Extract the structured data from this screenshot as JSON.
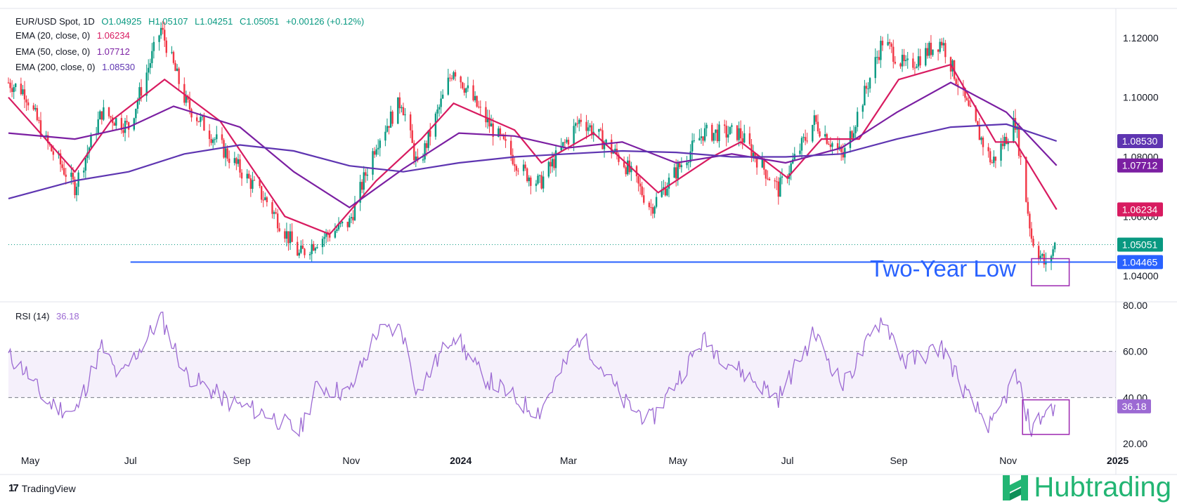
{
  "header": {
    "main": {
      "label": "EUR/USD Spot, 1D",
      "o": "O1.04925",
      "h": "H1.05107",
      "l": "L1.04251",
      "c": "C1.05051",
      "chg": "+0.00126 (+0.12%)"
    },
    "ema20": {
      "label": "EMA (20, close, 0)",
      "value": "1.06234"
    },
    "ema50": {
      "label": "EMA (50, close, 0)",
      "value": "1.07712"
    },
    "ema200": {
      "label": "EMA (200, close, 0)",
      "value": "1.08530"
    },
    "rsi": {
      "label": "RSI (14)",
      "value": "36.18"
    }
  },
  "annotation": {
    "text": "Two-Year Low"
  },
  "footer": {
    "tradingview": "TradingView",
    "brand": "Hubtrading"
  },
  "colors": {
    "up": "#089981",
    "down": "#f23645",
    "ema20": "#d81b60",
    "ema50": "#7b1fa2",
    "ema200": "#5e35b1",
    "rsi": "#9c6ad3",
    "support": "#2962ff",
    "box": "#9c27b0",
    "brand": "#22b573"
  },
  "chart_data": [
    {
      "type": "candlestick",
      "title": "EUR/USD Spot, 1D",
      "ylim": [
        1.032,
        1.128
      ],
      "y_ticks": [
        "1.12000",
        "1.10000",
        "1.08000",
        "1.06000",
        "1.04000"
      ],
      "x_ticks": [
        "May",
        "Jul",
        "Sep",
        "Nov",
        "2024",
        "Mar",
        "May",
        "Jul",
        "Sep",
        "Nov",
        "2025"
      ],
      "x_range": [
        "2023-04-24",
        "2024-12-31"
      ],
      "price_labels": [
        {
          "name": "EMA 200",
          "value": "1.08530"
        },
        {
          "name": "EMA 50",
          "value": "1.07712"
        },
        {
          "name": "EMA 20",
          "value": "1.06234"
        },
        {
          "name": "Close",
          "value": "1.05051"
        },
        {
          "name": "Support",
          "value": "1.04465"
        }
      ],
      "close_path": [
        [
          "2023-04-24",
          1.105
        ],
        [
          "2023-05-03",
          1.102
        ],
        [
          "2023-05-15",
          1.085
        ],
        [
          "2023-05-31",
          1.07
        ],
        [
          "2023-06-15",
          1.095
        ],
        [
          "2023-06-30",
          1.09
        ],
        [
          "2023-07-18",
          1.123
        ],
        [
          "2023-08-01",
          1.098
        ],
        [
          "2023-08-25",
          1.08
        ],
        [
          "2023-09-15",
          1.065
        ],
        [
          "2023-10-03",
          1.047
        ],
        [
          "2023-10-13",
          1.052
        ],
        [
          "2023-10-31",
          1.058
        ],
        [
          "2023-11-15",
          1.085
        ],
        [
          "2023-11-29",
          1.099
        ],
        [
          "2023-12-08",
          1.076
        ],
        [
          "2023-12-28",
          1.11
        ],
        [
          "2024-01-12",
          1.095
        ],
        [
          "2024-02-05",
          1.075
        ],
        [
          "2024-02-14",
          1.071
        ],
        [
          "2024-03-08",
          1.093
        ],
        [
          "2024-04-01",
          1.078
        ],
        [
          "2024-04-16",
          1.063
        ],
        [
          "2024-05-15",
          1.088
        ],
        [
          "2024-06-04",
          1.088
        ],
        [
          "2024-06-26",
          1.069
        ],
        [
          "2024-07-16",
          1.092
        ],
        [
          "2024-08-01",
          1.08
        ],
        [
          "2024-08-23",
          1.119
        ],
        [
          "2024-09-05",
          1.11
        ],
        [
          "2024-09-25",
          1.119
        ],
        [
          "2024-10-11",
          1.094
        ],
        [
          "2024-10-23",
          1.078
        ],
        [
          "2024-11-05",
          1.092
        ],
        [
          "2024-11-14",
          1.053
        ],
        [
          "2024-11-22",
          1.043
        ],
        [
          "2024-11-27",
          1.0505
        ]
      ],
      "ema_lines": [
        {
          "name": "EMA (20, close, 0)",
          "points": [
            [
              "2023-04-24",
              1.1
            ],
            [
              "2023-05-31",
              1.075
            ],
            [
              "2023-06-20",
              1.092
            ],
            [
              "2023-07-20",
              1.106
            ],
            [
              "2023-08-20",
              1.092
            ],
            [
              "2023-09-25",
              1.06
            ],
            [
              "2023-10-20",
              1.054
            ],
            [
              "2023-11-15",
              1.072
            ],
            [
              "2023-12-10",
              1.086
            ],
            [
              "2023-12-28",
              1.098
            ],
            [
              "2024-01-31",
              1.089
            ],
            [
              "2024-02-15",
              1.078
            ],
            [
              "2024-03-15",
              1.088
            ],
            [
              "2024-04-20",
              1.068
            ],
            [
              "2024-05-20",
              1.08
            ],
            [
              "2024-06-05",
              1.085
            ],
            [
              "2024-07-01",
              1.073
            ],
            [
              "2024-07-20",
              1.086
            ],
            [
              "2024-08-10",
              1.086
            ],
            [
              "2024-09-01",
              1.106
            ],
            [
              "2024-09-30",
              1.111
            ],
            [
              "2024-10-25",
              1.085
            ],
            [
              "2024-11-05",
              1.085
            ],
            [
              "2024-11-28",
              1.0623
            ]
          ]
        },
        {
          "name": "EMA (50, close, 0)",
          "points": [
            [
              "2023-04-24",
              1.088
            ],
            [
              "2023-05-31",
              1.086
            ],
            [
              "2023-06-30",
              1.09
            ],
            [
              "2023-07-25",
              1.097
            ],
            [
              "2023-08-31",
              1.09
            ],
            [
              "2023-09-30",
              1.075
            ],
            [
              "2023-10-31",
              1.063
            ],
            [
              "2023-11-30",
              1.076
            ],
            [
              "2023-12-31",
              1.088
            ],
            [
              "2024-01-31",
              1.087
            ],
            [
              "2024-02-29",
              1.083
            ],
            [
              "2024-03-31",
              1.085
            ],
            [
              "2024-04-30",
              1.078
            ],
            [
              "2024-05-31",
              1.081
            ],
            [
              "2024-06-30",
              1.078
            ],
            [
              "2024-07-31",
              1.083
            ],
            [
              "2024-08-31",
              1.095
            ],
            [
              "2024-09-30",
              1.105
            ],
            [
              "2024-10-31",
              1.095
            ],
            [
              "2024-11-28",
              1.0771
            ]
          ]
        },
        {
          "name": "EMA (200, close, 0)",
          "points": [
            [
              "2023-04-24",
              1.066
            ],
            [
              "2023-05-31",
              1.072
            ],
            [
              "2023-06-30",
              1.075
            ],
            [
              "2023-07-31",
              1.081
            ],
            [
              "2023-08-31",
              1.084
            ],
            [
              "2023-09-30",
              1.082
            ],
            [
              "2023-10-31",
              1.077
            ],
            [
              "2023-11-30",
              1.075
            ],
            [
              "2023-12-31",
              1.078
            ],
            [
              "2024-01-31",
              1.08
            ],
            [
              "2024-02-29",
              1.081
            ],
            [
              "2024-03-31",
              1.082
            ],
            [
              "2024-04-30",
              1.0815
            ],
            [
              "2024-05-31",
              1.08
            ],
            [
              "2024-06-30",
              1.08
            ],
            [
              "2024-07-31",
              1.081
            ],
            [
              "2024-08-31",
              1.086
            ],
            [
              "2024-09-30",
              1.09
            ],
            [
              "2024-10-31",
              1.091
            ],
            [
              "2024-11-28",
              1.0853
            ]
          ]
        }
      ],
      "support": {
        "value": 1.04465,
        "from": "2023-07-01",
        "to": "2024-12-31"
      }
    },
    {
      "type": "line",
      "title": "RSI (14)",
      "ylim": [
        20,
        80
      ],
      "y_ticks": [
        "80.00",
        "60.00",
        "40.00",
        "20.00"
      ],
      "band": [
        40,
        60
      ],
      "current": "36.18",
      "points": [
        [
          "2023-04-24",
          58
        ],
        [
          "2023-05-03",
          52
        ],
        [
          "2023-05-15",
          38
        ],
        [
          "2023-05-31",
          33
        ],
        [
          "2023-06-15",
          62
        ],
        [
          "2023-06-25",
          48
        ],
        [
          "2023-07-18",
          75
        ],
        [
          "2023-08-01",
          50
        ],
        [
          "2023-08-25",
          38
        ],
        [
          "2023-09-15",
          33
        ],
        [
          "2023-10-03",
          25
        ],
        [
          "2023-10-13",
          45
        ],
        [
          "2023-10-31",
          42
        ],
        [
          "2023-11-15",
          68
        ],
        [
          "2023-11-29",
          70
        ],
        [
          "2023-12-08",
          42
        ],
        [
          "2023-12-28",
          68
        ],
        [
          "2024-01-12",
          50
        ],
        [
          "2024-02-05",
          37
        ],
        [
          "2024-02-14",
          34
        ],
        [
          "2024-03-08",
          67
        ],
        [
          "2024-04-01",
          38
        ],
        [
          "2024-04-16",
          30
        ],
        [
          "2024-05-15",
          65
        ],
        [
          "2024-06-04",
          52
        ],
        [
          "2024-06-26",
          40
        ],
        [
          "2024-07-16",
          68
        ],
        [
          "2024-08-01",
          45
        ],
        [
          "2024-08-23",
          75
        ],
        [
          "2024-09-05",
          55
        ],
        [
          "2024-09-25",
          62
        ],
        [
          "2024-10-11",
          38
        ],
        [
          "2024-10-23",
          27
        ],
        [
          "2024-11-05",
          50
        ],
        [
          "2024-11-14",
          26
        ],
        [
          "2024-11-22",
          34
        ],
        [
          "2024-11-27",
          36.18
        ]
      ]
    }
  ]
}
